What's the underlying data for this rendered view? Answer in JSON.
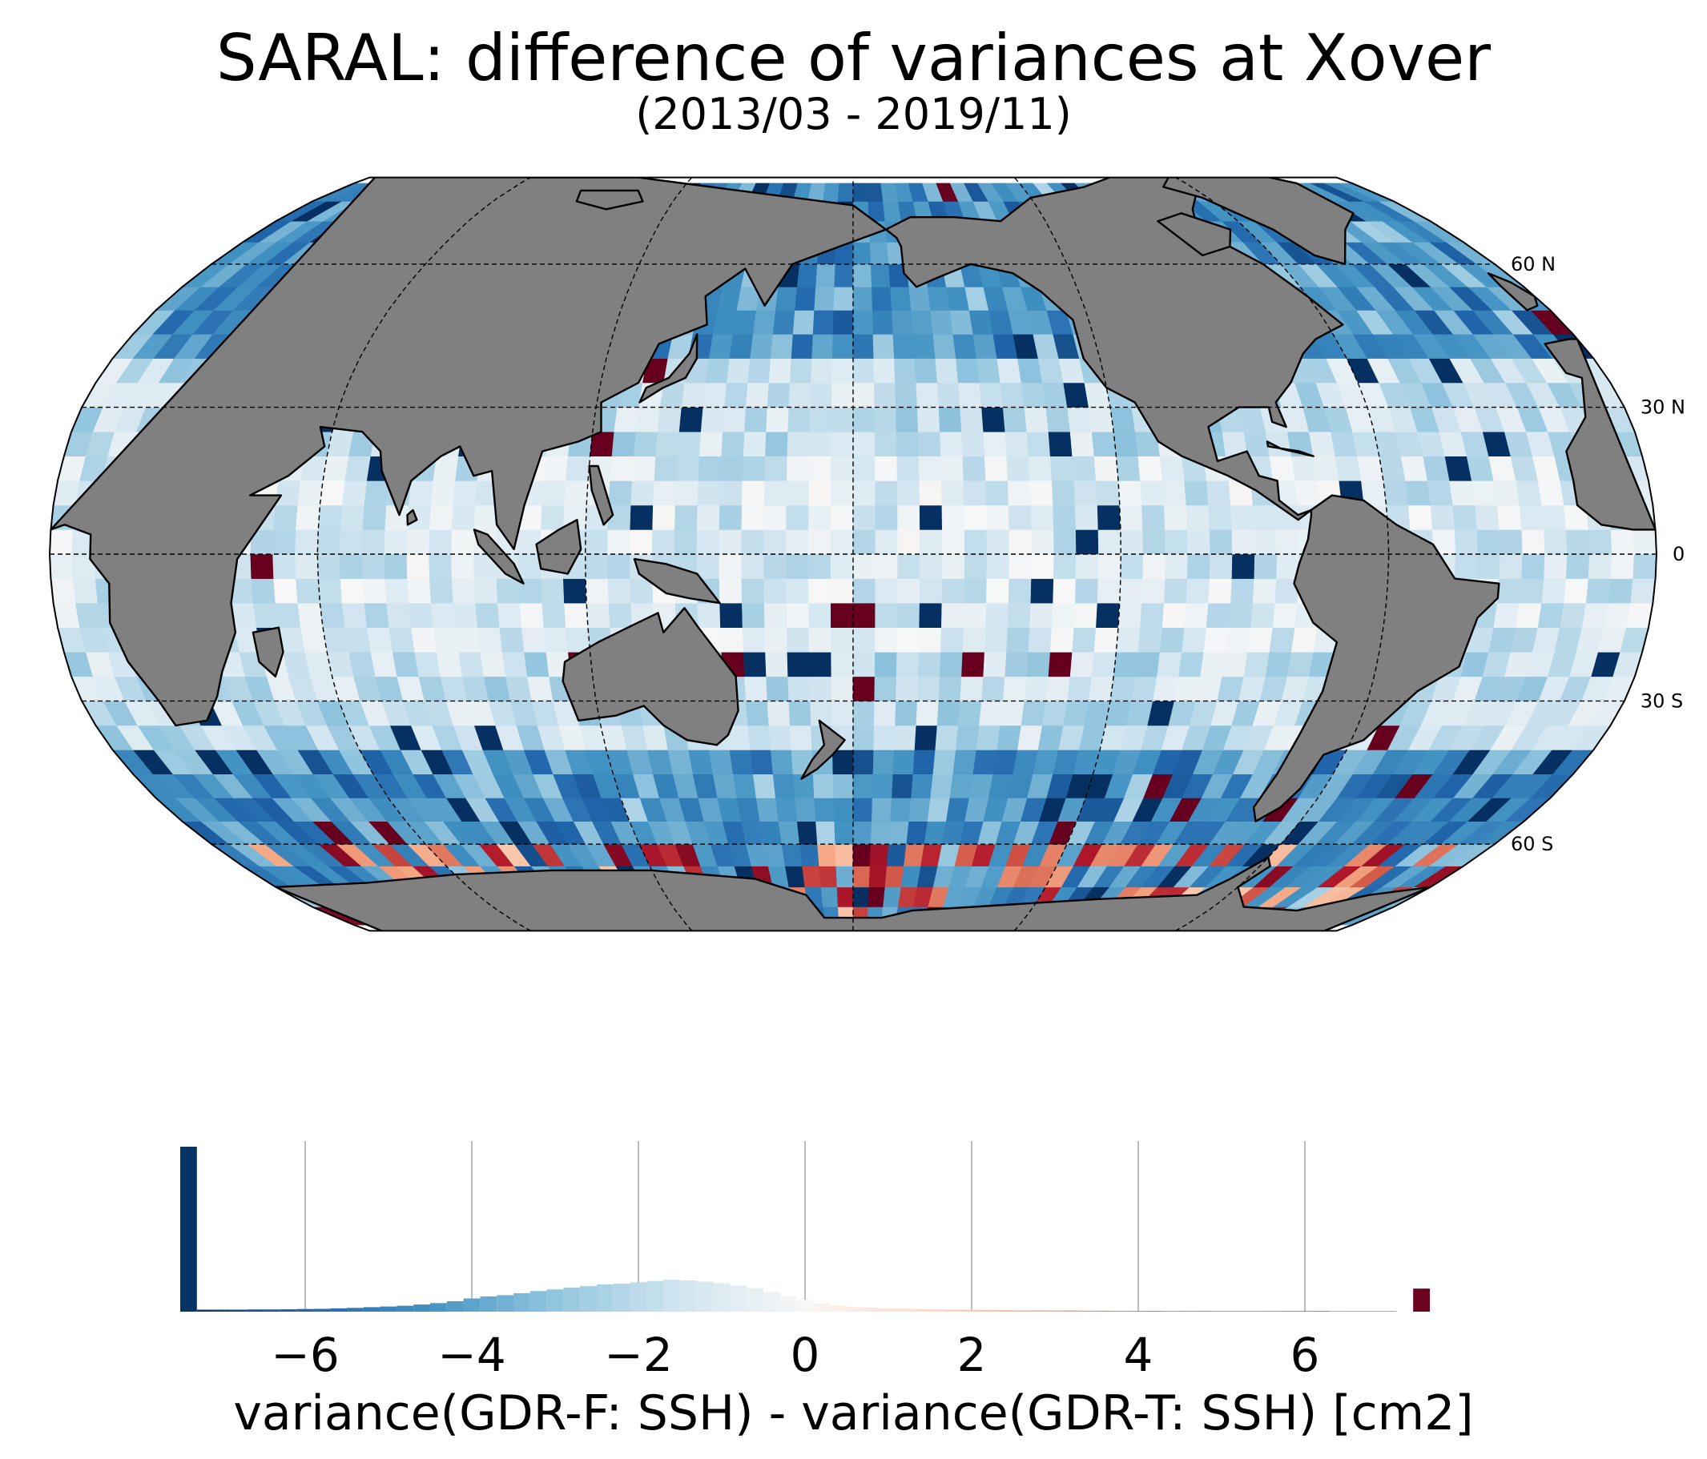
{
  "title": "SARAL: difference of variances at Xover",
  "subtitle": "(2013/03 - 2019/11)",
  "map": {
    "projection": "Robinson, centered on 180°",
    "land_color": "#808080",
    "ice_color": "#ffffff",
    "parallel_labels": [
      "60 N",
      "30 N",
      "0",
      "30 S",
      "60 S"
    ]
  },
  "colormap": {
    "name": "RdBu_r",
    "stops": [
      "#053061",
      "#2166ac",
      "#4393c3",
      "#92c5de",
      "#d1e5f0",
      "#f7f7f7",
      "#fddbc7",
      "#f4a582",
      "#d6604d",
      "#b2182b",
      "#67001f"
    ],
    "vmin": -7.5,
    "vmax": 7.5
  },
  "chart_data": {
    "type": "histogram",
    "xlabel": "variance(GDR-F: SSH) - variance(GDR-T: SSH) [cm2]",
    "xlim": [
      -7.5,
      7.5
    ],
    "xticks": [
      -6,
      -4,
      -2,
      0,
      2,
      4,
      6
    ],
    "xtick_labels": [
      "−6",
      "−4",
      "−2",
      "0",
      "2",
      "4",
      "6"
    ],
    "grid": "vertical",
    "bin_width": 0.2,
    "bins": [
      {
        "x": -7.4,
        "count": 1000,
        "note_underflow": true
      },
      {
        "x": -7.2,
        "count": 12
      },
      {
        "x": -7.0,
        "count": 12
      },
      {
        "x": -6.8,
        "count": 12
      },
      {
        "x": -6.6,
        "count": 13
      },
      {
        "x": -6.4,
        "count": 13
      },
      {
        "x": -6.2,
        "count": 14
      },
      {
        "x": -6.0,
        "count": 16
      },
      {
        "x": -5.8,
        "count": 17
      },
      {
        "x": -5.6,
        "count": 20
      },
      {
        "x": -5.4,
        "count": 23
      },
      {
        "x": -5.2,
        "count": 27
      },
      {
        "x": -5.0,
        "count": 31
      },
      {
        "x": -4.8,
        "count": 36
      },
      {
        "x": -4.6,
        "count": 43
      },
      {
        "x": -4.4,
        "count": 52
      },
      {
        "x": -4.2,
        "count": 63
      },
      {
        "x": -4.0,
        "count": 80
      },
      {
        "x": -3.8,
        "count": 92
      },
      {
        "x": -3.6,
        "count": 100
      },
      {
        "x": -3.4,
        "count": 112
      },
      {
        "x": -3.2,
        "count": 125
      },
      {
        "x": -3.0,
        "count": 135
      },
      {
        "x": -2.8,
        "count": 145
      },
      {
        "x": -2.6,
        "count": 155
      },
      {
        "x": -2.4,
        "count": 165
      },
      {
        "x": -2.2,
        "count": 170
      },
      {
        "x": -2.0,
        "count": 178
      },
      {
        "x": -1.8,
        "count": 186
      },
      {
        "x": -1.6,
        "count": 194
      },
      {
        "x": -1.4,
        "count": 190
      },
      {
        "x": -1.2,
        "count": 182
      },
      {
        "x": -1.0,
        "count": 172
      },
      {
        "x": -0.8,
        "count": 158
      },
      {
        "x": -0.6,
        "count": 142
      },
      {
        "x": -0.4,
        "count": 120
      },
      {
        "x": -0.2,
        "count": 96
      },
      {
        "x": 0.0,
        "count": 72
      },
      {
        "x": 0.2,
        "count": 52
      },
      {
        "x": 0.4,
        "count": 38
      },
      {
        "x": 0.6,
        "count": 30
      },
      {
        "x": 0.8,
        "count": 25
      },
      {
        "x": 1.0,
        "count": 21
      },
      {
        "x": 1.2,
        "count": 18
      },
      {
        "x": 1.4,
        "count": 16
      },
      {
        "x": 1.6,
        "count": 14
      },
      {
        "x": 1.8,
        "count": 12
      },
      {
        "x": 2.0,
        "count": 11
      },
      {
        "x": 2.2,
        "count": 10
      },
      {
        "x": 2.4,
        "count": 9
      },
      {
        "x": 2.6,
        "count": 8
      },
      {
        "x": 2.8,
        "count": 8
      },
      {
        "x": 3.0,
        "count": 7
      },
      {
        "x": 3.2,
        "count": 7
      },
      {
        "x": 3.4,
        "count": 6
      },
      {
        "x": 3.6,
        "count": 6
      },
      {
        "x": 3.8,
        "count": 5
      },
      {
        "x": 4.0,
        "count": 5
      },
      {
        "x": 4.2,
        "count": 5
      },
      {
        "x": 4.4,
        "count": 4
      },
      {
        "x": 4.6,
        "count": 4
      },
      {
        "x": 4.8,
        "count": 4
      },
      {
        "x": 5.0,
        "count": 3
      },
      {
        "x": 5.2,
        "count": 3
      },
      {
        "x": 5.4,
        "count": 3
      },
      {
        "x": 5.6,
        "count": 3
      },
      {
        "x": 5.8,
        "count": 3
      },
      {
        "x": 6.0,
        "count": 3
      },
      {
        "x": 6.2,
        "count": 3
      },
      {
        "x": 6.4,
        "count": 2
      },
      {
        "x": 6.6,
        "count": 2
      },
      {
        "x": 6.8,
        "count": 2
      },
      {
        "x": 7.0,
        "count": 2
      },
      {
        "x": 7.4,
        "count": 140,
        "note_overflow": true
      }
    ]
  }
}
